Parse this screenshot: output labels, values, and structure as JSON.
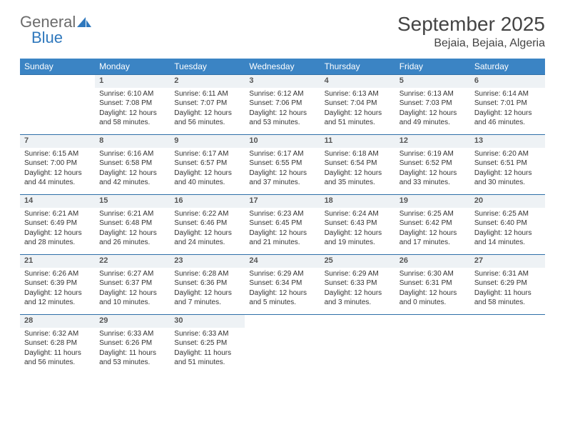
{
  "logo": {
    "word1": "General",
    "word2": "Blue"
  },
  "title": "September 2025",
  "location": "Bejaia, Bejaia, Algeria",
  "headers": [
    "Sunday",
    "Monday",
    "Tuesday",
    "Wednesday",
    "Thursday",
    "Friday",
    "Saturday"
  ],
  "header_bg": "#3b84c4",
  "header_fg": "#ffffff",
  "daynum_bg": "#eef2f5",
  "rule_color": "#2f6fa8",
  "weeks": [
    {
      "nums": [
        "",
        "1",
        "2",
        "3",
        "4",
        "5",
        "6"
      ],
      "cells": [
        null,
        {
          "sunrise": "6:10 AM",
          "sunset": "7:08 PM",
          "daylight": "12 hours and 58 minutes."
        },
        {
          "sunrise": "6:11 AM",
          "sunset": "7:07 PM",
          "daylight": "12 hours and 56 minutes."
        },
        {
          "sunrise": "6:12 AM",
          "sunset": "7:06 PM",
          "daylight": "12 hours and 53 minutes."
        },
        {
          "sunrise": "6:13 AM",
          "sunset": "7:04 PM",
          "daylight": "12 hours and 51 minutes."
        },
        {
          "sunrise": "6:13 AM",
          "sunset": "7:03 PM",
          "daylight": "12 hours and 49 minutes."
        },
        {
          "sunrise": "6:14 AM",
          "sunset": "7:01 PM",
          "daylight": "12 hours and 46 minutes."
        }
      ]
    },
    {
      "nums": [
        "7",
        "8",
        "9",
        "10",
        "11",
        "12",
        "13"
      ],
      "cells": [
        {
          "sunrise": "6:15 AM",
          "sunset": "7:00 PM",
          "daylight": "12 hours and 44 minutes."
        },
        {
          "sunrise": "6:16 AM",
          "sunset": "6:58 PM",
          "daylight": "12 hours and 42 minutes."
        },
        {
          "sunrise": "6:17 AM",
          "sunset": "6:57 PM",
          "daylight": "12 hours and 40 minutes."
        },
        {
          "sunrise": "6:17 AM",
          "sunset": "6:55 PM",
          "daylight": "12 hours and 37 minutes."
        },
        {
          "sunrise": "6:18 AM",
          "sunset": "6:54 PM",
          "daylight": "12 hours and 35 minutes."
        },
        {
          "sunrise": "6:19 AM",
          "sunset": "6:52 PM",
          "daylight": "12 hours and 33 minutes."
        },
        {
          "sunrise": "6:20 AM",
          "sunset": "6:51 PM",
          "daylight": "12 hours and 30 minutes."
        }
      ]
    },
    {
      "nums": [
        "14",
        "15",
        "16",
        "17",
        "18",
        "19",
        "20"
      ],
      "cells": [
        {
          "sunrise": "6:21 AM",
          "sunset": "6:49 PM",
          "daylight": "12 hours and 28 minutes."
        },
        {
          "sunrise": "6:21 AM",
          "sunset": "6:48 PM",
          "daylight": "12 hours and 26 minutes."
        },
        {
          "sunrise": "6:22 AM",
          "sunset": "6:46 PM",
          "daylight": "12 hours and 24 minutes."
        },
        {
          "sunrise": "6:23 AM",
          "sunset": "6:45 PM",
          "daylight": "12 hours and 21 minutes."
        },
        {
          "sunrise": "6:24 AM",
          "sunset": "6:43 PM",
          "daylight": "12 hours and 19 minutes."
        },
        {
          "sunrise": "6:25 AM",
          "sunset": "6:42 PM",
          "daylight": "12 hours and 17 minutes."
        },
        {
          "sunrise": "6:25 AM",
          "sunset": "6:40 PM",
          "daylight": "12 hours and 14 minutes."
        }
      ]
    },
    {
      "nums": [
        "21",
        "22",
        "23",
        "24",
        "25",
        "26",
        "27"
      ],
      "cells": [
        {
          "sunrise": "6:26 AM",
          "sunset": "6:39 PM",
          "daylight": "12 hours and 12 minutes."
        },
        {
          "sunrise": "6:27 AM",
          "sunset": "6:37 PM",
          "daylight": "12 hours and 10 minutes."
        },
        {
          "sunrise": "6:28 AM",
          "sunset": "6:36 PM",
          "daylight": "12 hours and 7 minutes."
        },
        {
          "sunrise": "6:29 AM",
          "sunset": "6:34 PM",
          "daylight": "12 hours and 5 minutes."
        },
        {
          "sunrise": "6:29 AM",
          "sunset": "6:33 PM",
          "daylight": "12 hours and 3 minutes."
        },
        {
          "sunrise": "6:30 AM",
          "sunset": "6:31 PM",
          "daylight": "12 hours and 0 minutes."
        },
        {
          "sunrise": "6:31 AM",
          "sunset": "6:29 PM",
          "daylight": "11 hours and 58 minutes."
        }
      ]
    },
    {
      "nums": [
        "28",
        "29",
        "30",
        "",
        "",
        "",
        ""
      ],
      "cells": [
        {
          "sunrise": "6:32 AM",
          "sunset": "6:28 PM",
          "daylight": "11 hours and 56 minutes."
        },
        {
          "sunrise": "6:33 AM",
          "sunset": "6:26 PM",
          "daylight": "11 hours and 53 minutes."
        },
        {
          "sunrise": "6:33 AM",
          "sunset": "6:25 PM",
          "daylight": "11 hours and 51 minutes."
        },
        null,
        null,
        null,
        null
      ]
    }
  ],
  "labels": {
    "sunrise": "Sunrise: ",
    "sunset": "Sunset: ",
    "daylight": "Daylight: "
  }
}
